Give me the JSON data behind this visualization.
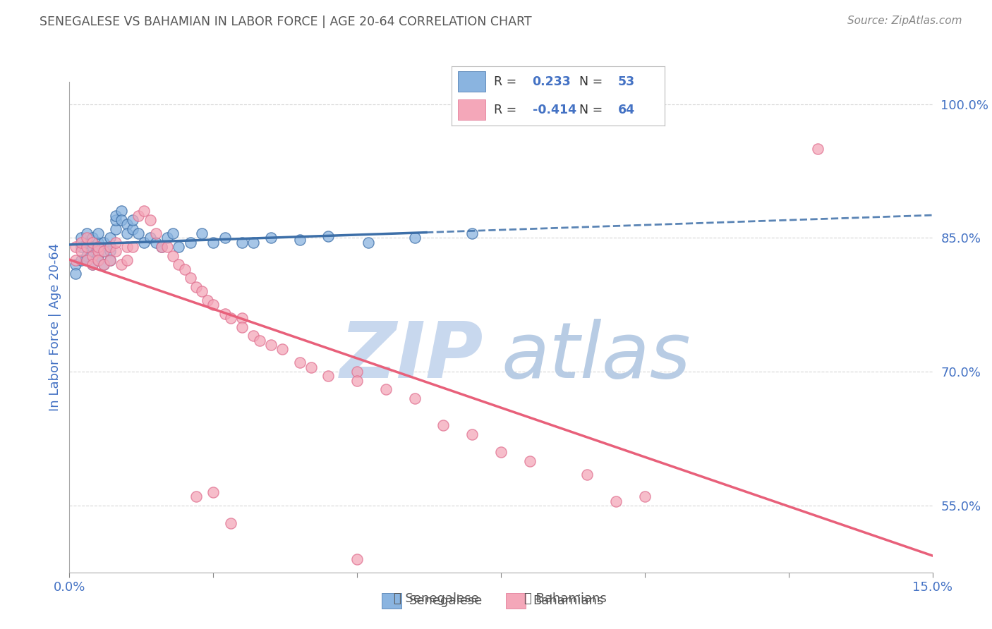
{
  "title": "SENEGALESE VS BAHAMIAN IN LABOR FORCE | AGE 20-64 CORRELATION CHART",
  "source": "Source: ZipAtlas.com",
  "ylabel": "In Labor Force | Age 20-64",
  "xmin": 0.0,
  "xmax": 0.15,
  "ymin": 0.475,
  "ymax": 1.025,
  "xticks": [
    0.0,
    0.025,
    0.05,
    0.075,
    0.1,
    0.125,
    0.15
  ],
  "xticklabels": [
    "0.0%",
    "",
    "",
    "",
    "",
    "",
    "15.0%"
  ],
  "ytick_positions": [
    0.55,
    0.7,
    0.85,
    1.0
  ],
  "ytick_labels": [
    "55.0%",
    "70.0%",
    "85.0%",
    "100.0%"
  ],
  "r_senegalese": 0.233,
  "n_senegalese": 53,
  "r_bahamian": -0.414,
  "n_bahamian": 64,
  "color_senegalese": "#8ab4e0",
  "color_bahamian": "#f4a7b9",
  "color_line_senegalese": "#3d6fa8",
  "color_line_bahamian": "#e8607a",
  "watermark_zip_color": "#c8d8ee",
  "watermark_atlas_color": "#b8cce4",
  "background_color": "#ffffff",
  "grid_color": "#cccccc",
  "title_color": "#555555",
  "axis_tick_color": "#4472c4",
  "legend_label_color": "#333333",
  "legend_value_color": "#4472c4",
  "senegalese_x": [
    0.001,
    0.001,
    0.002,
    0.002,
    0.002,
    0.003,
    0.003,
    0.003,
    0.003,
    0.004,
    0.004,
    0.004,
    0.004,
    0.005,
    0.005,
    0.005,
    0.005,
    0.006,
    0.006,
    0.006,
    0.007,
    0.007,
    0.007,
    0.007,
    0.008,
    0.008,
    0.008,
    0.009,
    0.009,
    0.01,
    0.01,
    0.011,
    0.011,
    0.012,
    0.013,
    0.014,
    0.015,
    0.016,
    0.017,
    0.018,
    0.019,
    0.021,
    0.023,
    0.025,
    0.027,
    0.03,
    0.032,
    0.035,
    0.04,
    0.045,
    0.052,
    0.06,
    0.07
  ],
  "senegalese_y": [
    0.82,
    0.81,
    0.84,
    0.85,
    0.825,
    0.83,
    0.845,
    0.855,
    0.825,
    0.835,
    0.85,
    0.82,
    0.84,
    0.83,
    0.845,
    0.825,
    0.855,
    0.835,
    0.845,
    0.82,
    0.835,
    0.85,
    0.84,
    0.825,
    0.86,
    0.87,
    0.875,
    0.88,
    0.87,
    0.865,
    0.855,
    0.86,
    0.87,
    0.855,
    0.845,
    0.85,
    0.845,
    0.84,
    0.85,
    0.855,
    0.84,
    0.845,
    0.855,
    0.845,
    0.85,
    0.845,
    0.845,
    0.85,
    0.848,
    0.852,
    0.845,
    0.85,
    0.855
  ],
  "bahamian_x": [
    0.001,
    0.001,
    0.002,
    0.002,
    0.003,
    0.003,
    0.003,
    0.004,
    0.004,
    0.004,
    0.005,
    0.005,
    0.005,
    0.006,
    0.006,
    0.007,
    0.007,
    0.008,
    0.008,
    0.009,
    0.01,
    0.01,
    0.011,
    0.012,
    0.013,
    0.014,
    0.015,
    0.016,
    0.017,
    0.018,
    0.019,
    0.02,
    0.021,
    0.022,
    0.023,
    0.024,
    0.025,
    0.027,
    0.028,
    0.03,
    0.03,
    0.032,
    0.033,
    0.035,
    0.037,
    0.04,
    0.042,
    0.045,
    0.05,
    0.05,
    0.055,
    0.06,
    0.065,
    0.07,
    0.075,
    0.08,
    0.09,
    0.095,
    0.1,
    0.022,
    0.025,
    0.028,
    0.05,
    0.13
  ],
  "bahamian_y": [
    0.825,
    0.84,
    0.835,
    0.845,
    0.825,
    0.84,
    0.85,
    0.83,
    0.845,
    0.82,
    0.835,
    0.825,
    0.84,
    0.82,
    0.835,
    0.825,
    0.84,
    0.835,
    0.845,
    0.82,
    0.825,
    0.84,
    0.84,
    0.875,
    0.88,
    0.87,
    0.855,
    0.84,
    0.84,
    0.83,
    0.82,
    0.815,
    0.805,
    0.795,
    0.79,
    0.78,
    0.775,
    0.765,
    0.76,
    0.76,
    0.75,
    0.74,
    0.735,
    0.73,
    0.725,
    0.71,
    0.705,
    0.695,
    0.7,
    0.69,
    0.68,
    0.67,
    0.64,
    0.63,
    0.61,
    0.6,
    0.585,
    0.555,
    0.56,
    0.56,
    0.565,
    0.53,
    0.49,
    0.95
  ]
}
